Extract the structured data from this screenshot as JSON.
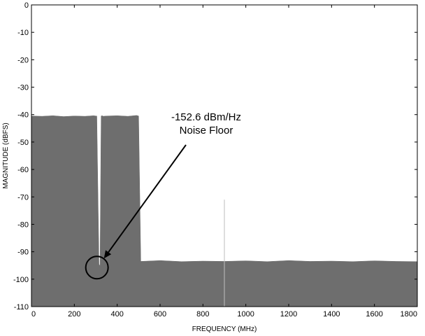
{
  "chart_data": {
    "type": "area",
    "title": "",
    "xlabel": "FREQUENCY (MHz)",
    "ylabel": "MAGNITUDE (dBFS)",
    "xlim": [
      0,
      1800
    ],
    "ylim": [
      -110,
      0
    ],
    "xticks": [
      0,
      200,
      400,
      600,
      800,
      1000,
      1200,
      1400,
      1600,
      1800
    ],
    "yticks": [
      0,
      -10,
      -20,
      -30,
      -40,
      -50,
      -60,
      -70,
      -80,
      -90,
      -100,
      -110
    ],
    "grid": false,
    "legend": "none",
    "fill_color": "#6e6e6e",
    "series": [
      {
        "x": [
          0,
          50,
          100,
          150,
          200,
          250,
          290,
          300,
          305,
          315,
          320,
          325,
          330,
          335,
          350,
          400,
          450,
          490,
          500,
          510,
          600,
          700,
          800,
          900,
          1000,
          1100,
          1200,
          1300,
          1400,
          1500,
          1600,
          1700,
          1800
        ],
        "values": [
          -40.5,
          -40.6,
          -40.4,
          -40.7,
          -40.5,
          -40.6,
          -40.4,
          -40.5,
          -40.5,
          -94.5,
          -95.2,
          -40.5,
          -40.4,
          -40.6,
          -40.5,
          -40.4,
          -40.6,
          -40.3,
          -40.5,
          -93.5,
          -93.2,
          -93.6,
          -93.4,
          -93.5,
          -93.3,
          -93.6,
          -93.2,
          -93.5,
          -93.4,
          -93.6,
          -93.3,
          -93.5,
          -93.6
        ]
      }
    ],
    "spurs": [
      {
        "x": 900,
        "value": -71
      }
    ],
    "annotation": {
      "lines": [
        "-152.6 dBm/Hz",
        "Noise Floor"
      ],
      "target_x": 325,
      "target_y": -95
    }
  }
}
